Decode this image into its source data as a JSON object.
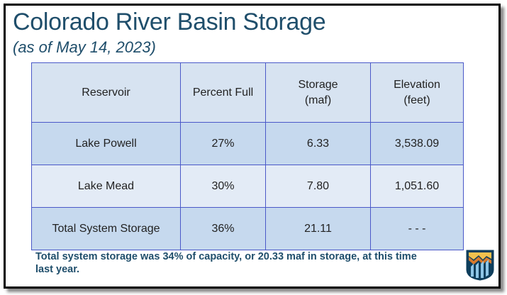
{
  "slide": {
    "title": "Colorado River Basin Storage",
    "subtitle": "(as of May 14, 2023)"
  },
  "table": {
    "headers": [
      "Reservoir",
      "Percent Full",
      "Storage\n(maf)",
      "Elevation\n(feet)"
    ],
    "rows": [
      [
        "Lake Powell",
        "27%",
        "6.33",
        "3,538.09"
      ],
      [
        "Lake Mead",
        "30%",
        "7.80",
        "1,051.60"
      ],
      [
        "Total System Storage",
        "36%",
        "21.11",
        "- - -"
      ]
    ]
  },
  "note": "Total system storage was 34% of capacity, or 20.33 maf in storage, at this time last year.",
  "logo": {
    "icon": "bureau-of-reclamation-logo"
  },
  "colors": {
    "title": "#1f4e6b",
    "header_bg": "#d7e3f1",
    "row_dark": "#c6d9ee",
    "row_light": "#e3ebf6",
    "border": "#4a58c8"
  }
}
